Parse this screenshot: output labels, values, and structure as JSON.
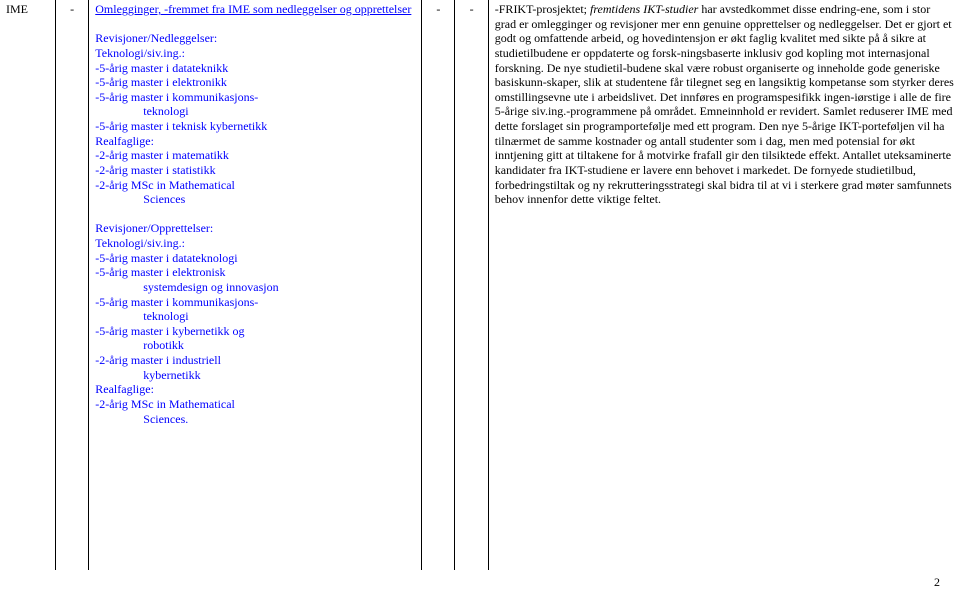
{
  "colA": "IME",
  "colB": "-",
  "colD": "-",
  "colE": "-",
  "colC": {
    "line1": "Omlegginger,  -fremmet fra IME som nedleggelser og opprettelser",
    "hdrNed": "Revisjoner/Nedleggelser:",
    "tek1": "Teknologi/siv.ing.:",
    "n1": "-5-årig master i datateknikk",
    "n2": "-5-årig master i elektronikk",
    "n3a": "-5-årig master i kommunikasjons-",
    "n3b": "teknologi",
    "n4": "-5-årig master i teknisk kybernetikk",
    "real": "Realfaglige:",
    "r1": "-2-årig master i matematikk",
    "r2": "-2-årig master i statistikk",
    "r3a": "-2-årig MSc in Mathematical",
    "r3b": "Sciences",
    "hdrOpp": "Revisjoner/Opprettelser:",
    "tek2": "Teknologi/siv.ing.:",
    "o1": "-5-årig master i datateknologi",
    "o2a": "-5-årig master i elektronisk",
    "o2b": "systemdesign og innovasjon",
    "o3a": "-5-årig master i kommunikasjons-",
    "o3b": "teknologi",
    "o4a": "-5-årig master i kybernetikk og",
    "o4b": "robotikk",
    "o5a": "-2-årig master i industriell",
    "o5b": "kybernetikk",
    "real2": "Realfaglige:",
    "rr1a": "-2-årig MSc in Mathematical",
    "rr1b": "Sciences."
  },
  "colF": {
    "pre": "-FRIKT-prosjektet; ",
    "ital": "fremtidens IKT-studier",
    "body": " har avstedkommet disse endring-ene, som i stor grad er omlegginger og revisjoner mer enn genuine opprettelser og nedleggelser. Det er gjort et godt og omfattende arbeid, og hovedintensjon er økt faglig kvalitet med sikte på å sikre at studietilbudene er oppdaterte og forsk-ningsbaserte inklusiv god kopling mot internasjonal forskning. De nye studietil-budene skal være robust organiserte og inneholde gode generiske basiskunn-skaper, slik at studentene får tilegnet seg en langsiktig kompetanse som styrker deres omstillingsevne ute i arbeidslivet. Det innføres en programspesifikk ingen-iørstige i alle de fire 5-årige siv.ing.-programmene på området. Emneinnhold er revidert. Samlet reduserer IME med dette forslaget sin programportefølje med ett program. Den nye 5-årige IKT-porteføljen vil ha tilnærmet de samme kostnader og antall studenter som i dag, men med potensial for økt inntjening gitt at tiltakene for å motvirke frafall gir den tilsiktede effekt. Antallet uteksaminerte kandidater fra IKT-studiene er lavere enn behovet i markedet. De fornyede studietilbud, forbedringstiltak og ny rekrutteringsstrategi skal bidra til at vi i sterkere grad møter samfunnets behov innenfor dette viktige feltet."
  },
  "pageNumber": "2"
}
